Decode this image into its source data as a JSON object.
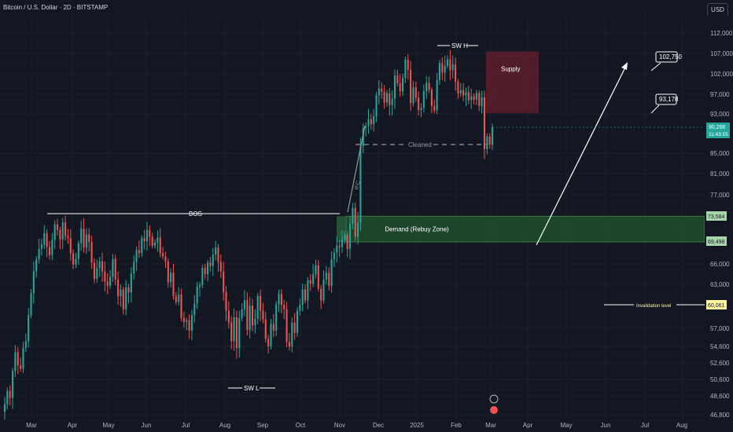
{
  "header": {
    "title": "Bitcoin / U.S. Dollar · 2D · BITSTAMP",
    "currency_button": "USD"
  },
  "chart_data": {
    "type": "candlestick",
    "symbol": "Bitcoin / U.S. Dollar",
    "interval": "2D",
    "exchange": "BITSTAMP",
    "price_ticks": [
      "112,000",
      "107,000",
      "102,000",
      "97,000",
      "93,000",
      "85,000",
      "81,000",
      "77,000",
      "66,000",
      "63,000",
      "57,000",
      "54,600",
      "52,600",
      "50,600",
      "48,600",
      "46,800"
    ],
    "price_tick_values": [
      112000,
      107000,
      102000,
      97000,
      93000,
      85000,
      81000,
      77000,
      66000,
      63000,
      57000,
      54600,
      52600,
      50600,
      48600,
      46800
    ],
    "time_ticks": [
      "Mar",
      "Apr",
      "May",
      "Jun",
      "Jul",
      "Aug",
      "Sep",
      "Oct",
      "Nov",
      "Dec",
      "2025",
      "Feb",
      "Mar",
      "Apr",
      "May",
      "Jun",
      "Jul",
      "Aug"
    ],
    "current_price": {
      "label": "90,266",
      "countdown": "11:43:55",
      "value": 90266,
      "color": "#26a69a"
    },
    "levels": [
      {
        "label": "73,584",
        "value": 73584,
        "color": "#a5d6a7"
      },
      {
        "label": "69,498",
        "value": 69498,
        "color": "#a5d6a7"
      },
      {
        "label": "60,061",
        "value": 60061,
        "color": "#fff59d"
      }
    ],
    "zones": [
      {
        "name": "Supply",
        "from_price": 93200,
        "to_price": 107500,
        "color": "#5d1f2d"
      },
      {
        "name": "Demand (Rebuy Zone)",
        "from_price": 69498,
        "to_price": 73584,
        "color": "#1e4a2b"
      }
    ],
    "annotations": {
      "bos": "BOS",
      "swing_high": "SW H",
      "swing_low": "SW L",
      "cleaned": "Cleaned",
      "ifc": "IFC",
      "invalidation": "Invalidation level",
      "target_1": "102,750",
      "target_2": "93,178"
    },
    "candles_close": [
      47800,
      49200,
      48400,
      51600,
      53900,
      52300,
      51900,
      54400,
      55300,
      58800,
      61800,
      64900,
      66700,
      68400,
      69100,
      70900,
      68700,
      67400,
      69800,
      72300,
      71400,
      69900,
      72600,
      70400,
      70100,
      67700,
      65900,
      66800,
      69300,
      71600,
      68600,
      70700,
      69500,
      66200,
      63800,
      65400,
      66400,
      64900,
      63400,
      62800,
      64100,
      66800,
      63700,
      61400,
      62300,
      59600,
      62600,
      61900,
      64600,
      66300,
      68200,
      67700,
      70100,
      69600,
      71400,
      70300,
      68900,
      69400,
      70200,
      67700,
      67200,
      66400,
      63300,
      64700,
      61400,
      60600,
      61600,
      58400,
      57900,
      58100,
      56700,
      58800,
      60400,
      62700,
      62900,
      65400,
      64500,
      66200,
      65700,
      67500,
      68600,
      66300,
      64900,
      61900,
      59400,
      57800,
      55300,
      58500,
      54400,
      58400,
      59600,
      60800,
      56800,
      60100,
      57400,
      58300,
      61400,
      59400,
      58200,
      55600,
      54600,
      57600,
      56700,
      60300,
      61700,
      60200,
      59600,
      55200,
      54600,
      57800,
      56400,
      59400,
      60200,
      62300,
      60800,
      63600,
      63100,
      64500,
      65800,
      62400,
      60800,
      63700,
      64700,
      62800,
      66700,
      67800,
      68900,
      68700,
      69900,
      70600,
      68400,
      72400,
      74900,
      70300,
      72600,
      86400,
      90100,
      90500,
      91900,
      90900,
      92500,
      96800,
      98400,
      97600,
      95300,
      97300,
      94800,
      96100,
      101600,
      99700,
      97700,
      101000,
      105500,
      103000,
      95200,
      98700,
      96300,
      93800,
      94200,
      97800,
      99800,
      98100,
      94600,
      93700,
      100500,
      104600,
      102300,
      104000,
      105600,
      102900,
      104300,
      100100,
      97200,
      98000,
      96800,
      97500,
      95800,
      96600,
      95900,
      97300,
      94600,
      96400,
      85800,
      88400,
      86700,
      90266
    ]
  }
}
